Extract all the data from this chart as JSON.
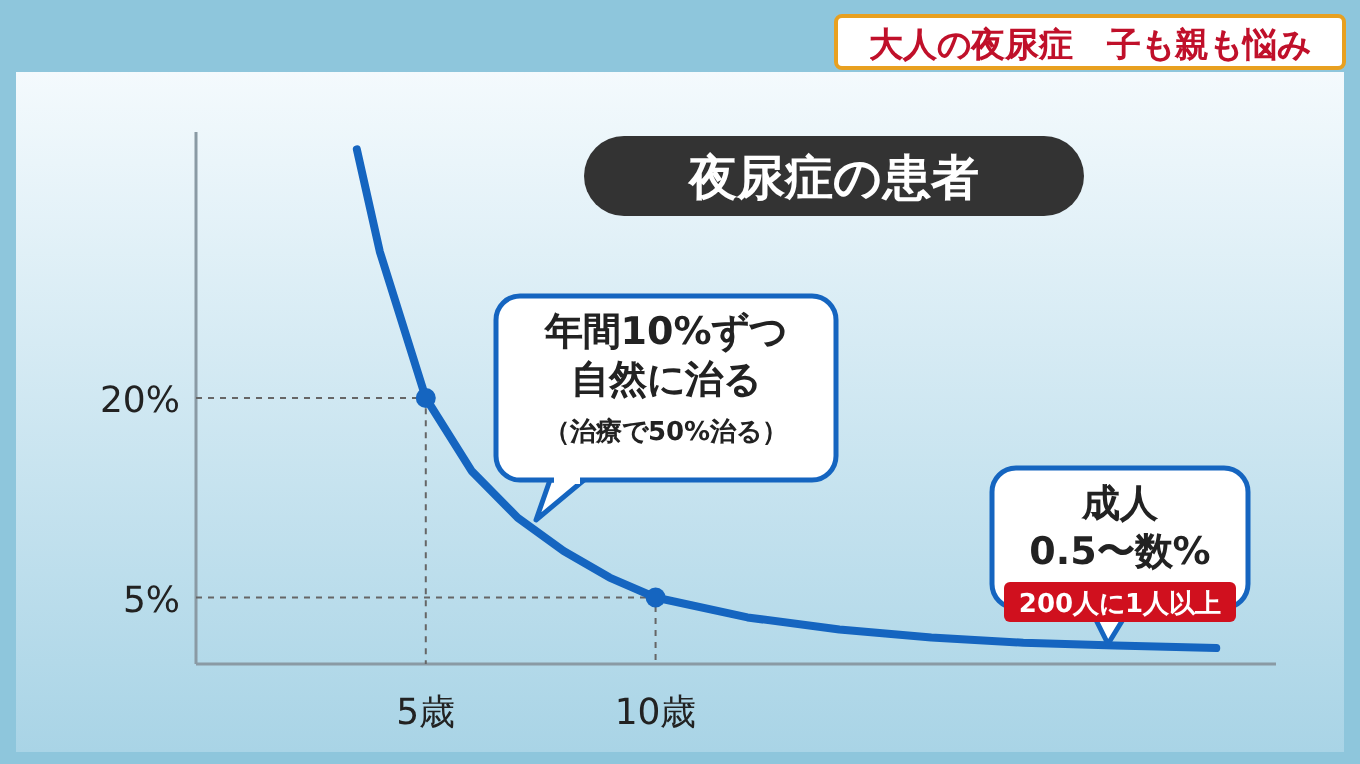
{
  "chart_data": {
    "type": "line",
    "title": "夜尿症の患者",
    "subtitle": "大人の夜尿症　子も親も悩み",
    "xlim": [
      0,
      23.5
    ],
    "ylim": [
      0,
      40
    ],
    "xticks": [
      {
        "value": 5,
        "label": "5歳"
      },
      {
        "value": 10,
        "label": "10歳"
      }
    ],
    "yticks": [
      {
        "value": 5,
        "label": "5%"
      },
      {
        "value": 20,
        "label": "20%"
      }
    ],
    "grid": false,
    "line_style": "solid",
    "marker": "none",
    "series": [
      {
        "type": "line",
        "color": "#666666",
        "line_style": "dashed",
        "x": [
          0,
          5,
          5
        ],
        "values": [
          20,
          20,
          0
        ]
      },
      {
        "type": "line",
        "color": "#666666",
        "line_style": "dashed",
        "x": [
          0,
          10,
          10
        ],
        "values": [
          5,
          5,
          0
        ]
      },
      {
        "color": "#1565c0",
        "x": [
          3.5,
          4,
          5,
          6,
          7,
          8,
          9,
          10,
          12,
          14,
          16,
          18,
          20,
          22.2
        ],
        "values": [
          38.7,
          31,
          20,
          14.5,
          11,
          8.5,
          6.5,
          5,
          3.5,
          2.6,
          2.0,
          1.6,
          1.4,
          1.2
        ]
      },
      {
        "type": "scatter",
        "color": "#1565c0",
        "marker": "circle",
        "x": [
          5,
          10
        ],
        "values": [
          20,
          5
        ]
      }
    ],
    "annotations": [
      "年間10%ずつ自然に治る",
      "（治療で50%治る）",
      "成人",
      "0.5〜数%",
      "200人に1人以上"
    ]
  }
}
